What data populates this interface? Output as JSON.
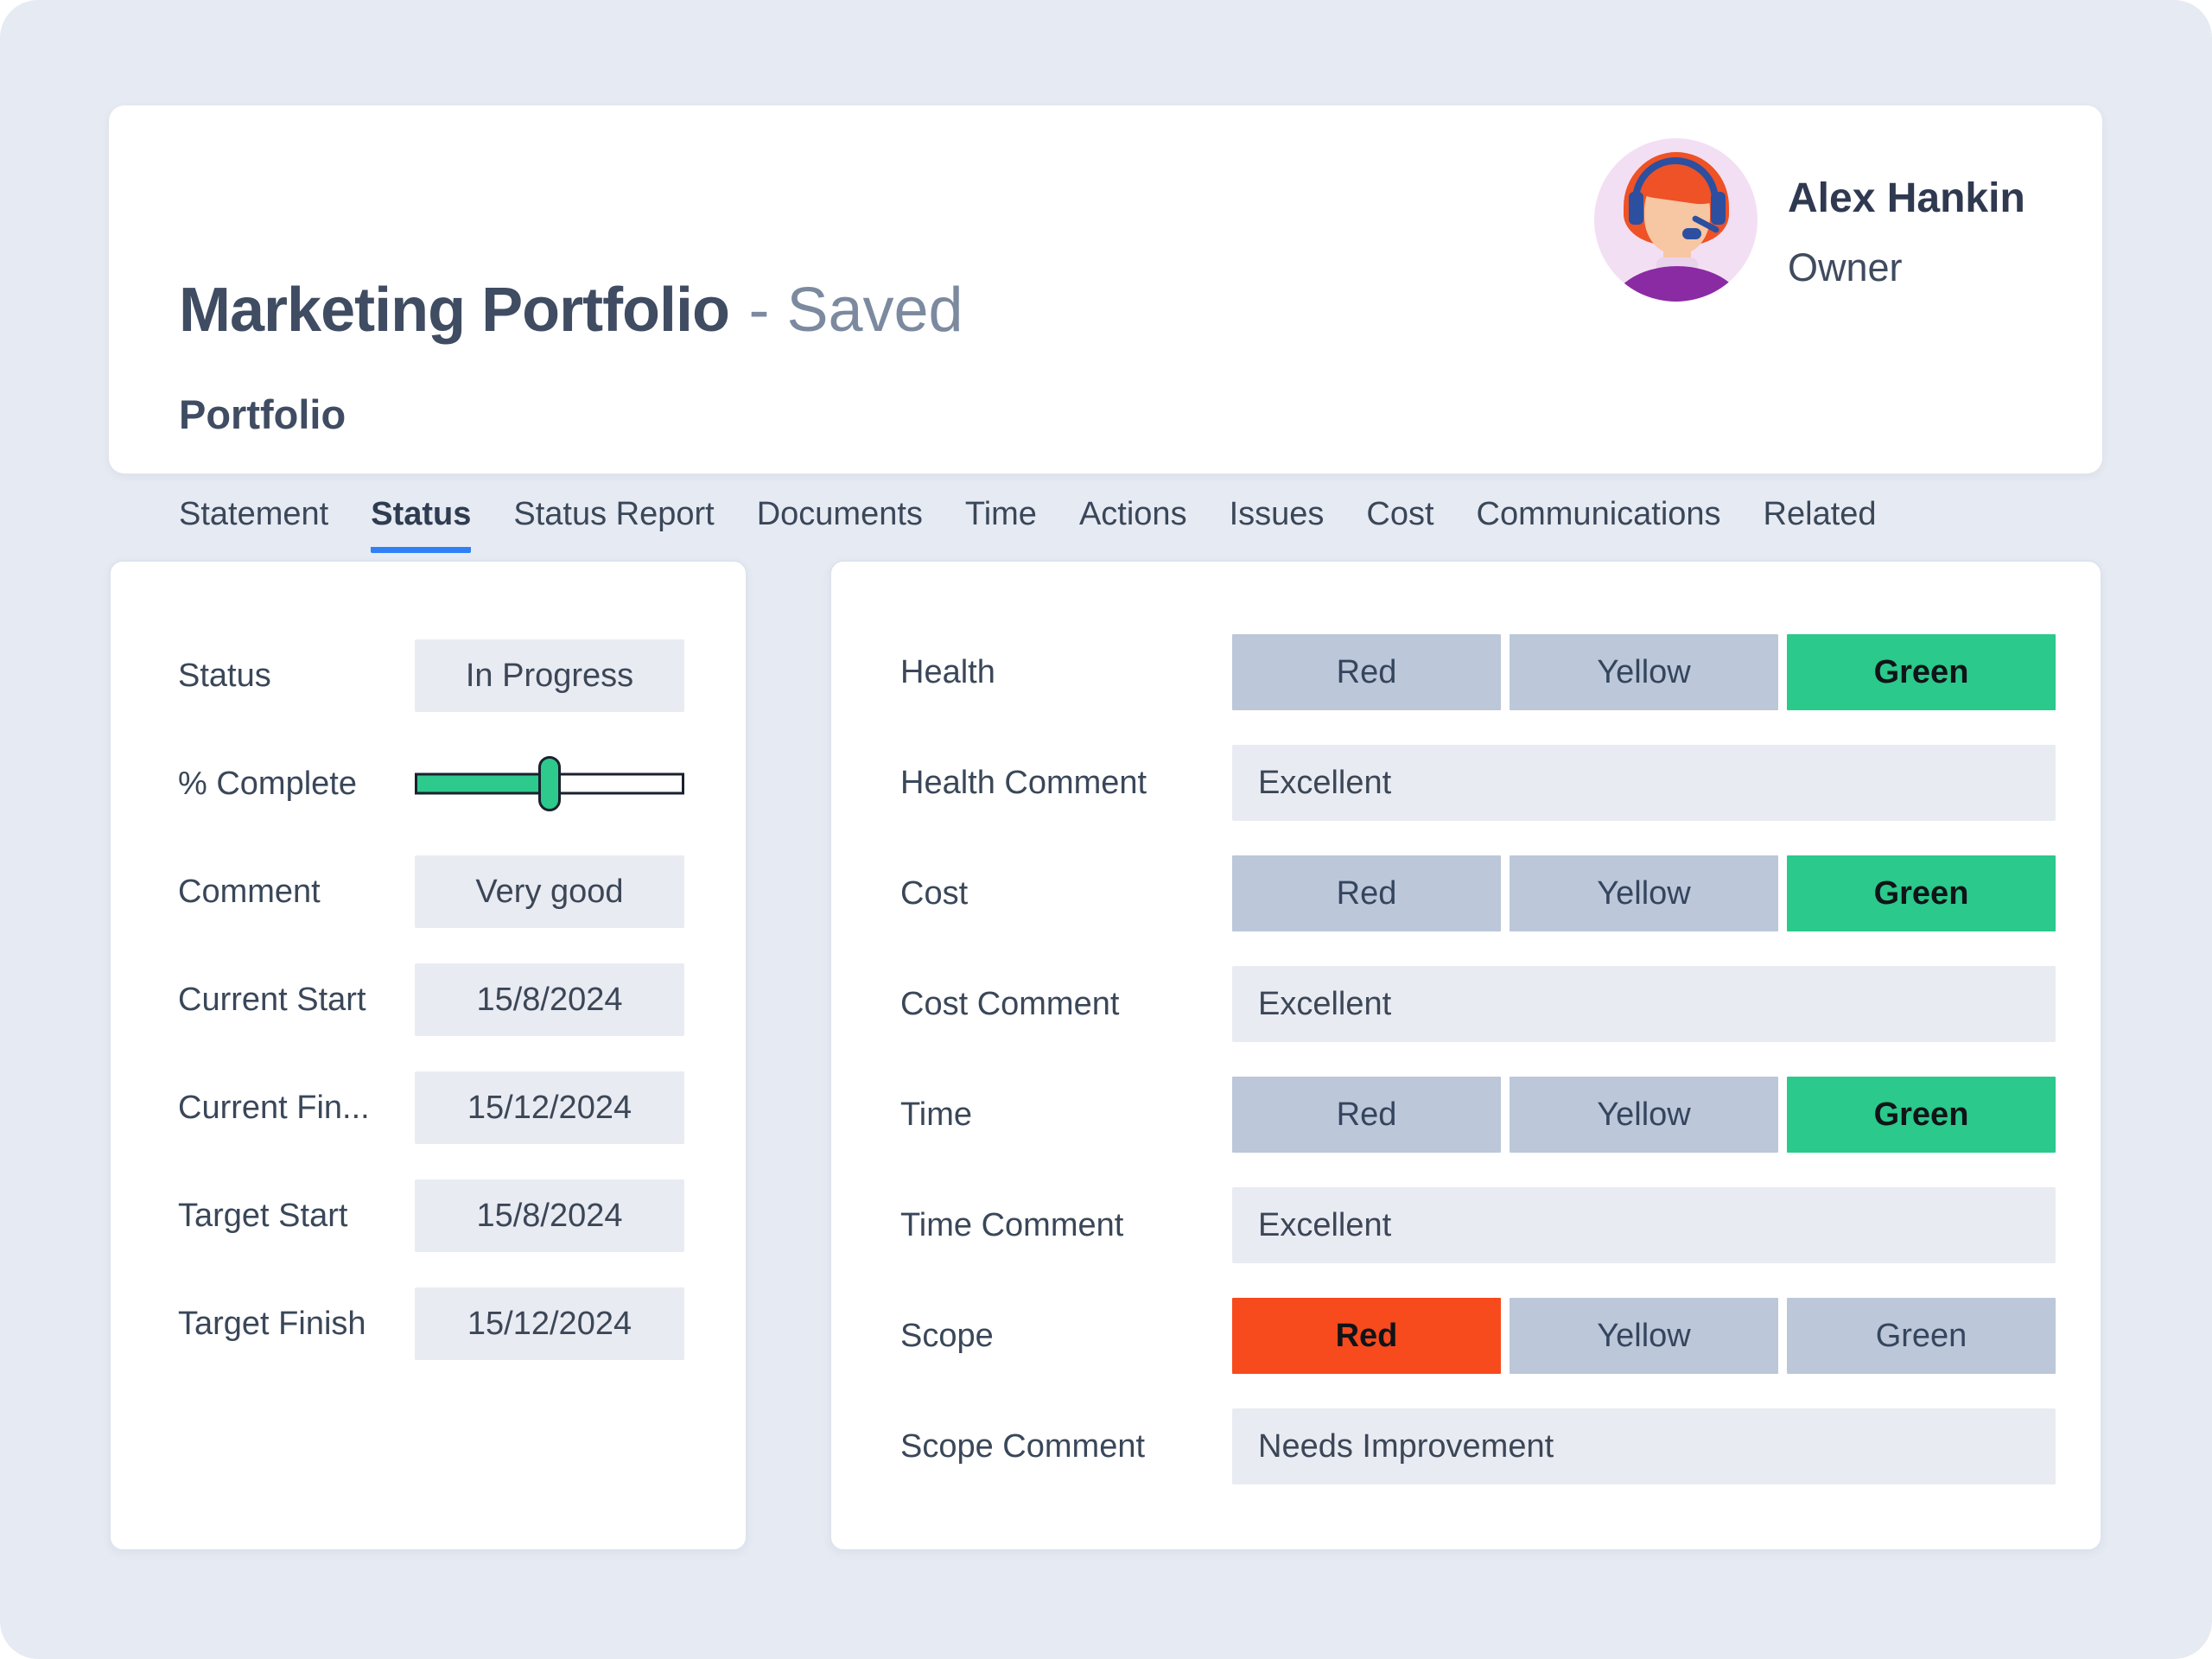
{
  "header": {
    "title": "Marketing Portfolio",
    "saved_suffix": "- Saved",
    "subtitle": "Portfolio",
    "user": {
      "name": "Alex Hankin",
      "role": "Owner"
    },
    "tabs": [
      {
        "label": "Statement",
        "active": false
      },
      {
        "label": "Status",
        "active": true
      },
      {
        "label": "Status Report",
        "active": false
      },
      {
        "label": "Documents",
        "active": false
      },
      {
        "label": "Time",
        "active": false
      },
      {
        "label": "Actions",
        "active": false
      },
      {
        "label": "Issues",
        "active": false
      },
      {
        "label": "Cost",
        "active": false
      },
      {
        "label": "Communications",
        "active": false
      },
      {
        "label": "Related",
        "active": false
      }
    ]
  },
  "status_panel": {
    "status": {
      "label": "Status",
      "value": "In Progress"
    },
    "percent_complete": {
      "label": "% Complete",
      "percent": 50
    },
    "comment": {
      "label": "Comment",
      "value": "Very good"
    },
    "current_start": {
      "label": "Current Start",
      "value": "15/8/2024"
    },
    "current_finish": {
      "label": "Current Fin...",
      "value": "15/12/2024"
    },
    "target_start": {
      "label": "Target Start",
      "value": "15/8/2024"
    },
    "target_finish": {
      "label": "Target Finish",
      "value": "15/12/2024"
    }
  },
  "health_panel": {
    "rag_options": [
      "Red",
      "Yellow",
      "Green"
    ],
    "rows": [
      {
        "type": "rag",
        "label": "Health",
        "selected": "Green"
      },
      {
        "type": "comment",
        "label": "Health Comment",
        "value": "Excellent"
      },
      {
        "type": "rag",
        "label": "Cost",
        "selected": "Green"
      },
      {
        "type": "comment",
        "label": "Cost Comment",
        "value": "Excellent"
      },
      {
        "type": "rag",
        "label": "Time",
        "selected": "Green"
      },
      {
        "type": "comment",
        "label": "Time Comment",
        "value": "Excellent"
      },
      {
        "type": "rag",
        "label": "Scope",
        "selected": "Red"
      },
      {
        "type": "comment",
        "label": "Scope Comment",
        "value": "Needs Improvement"
      }
    ]
  },
  "colors": {
    "page_bg": "#e6eaf2",
    "card_bg": "#ffffff",
    "field_bg": "#e8ebf2",
    "seg_bg": "#bcc7d9",
    "green": "#2bc98b",
    "red": "#f74a1d",
    "slider_green": "#2ec98c",
    "slider_border": "#19212d",
    "tab_underline": "#2f80f7",
    "label_text": "#3a4759",
    "title_text": "#3f4c62",
    "saved_text": "#7c8aa0",
    "avatar_bg": "#f3dff3",
    "avatar_hair": "#ee5226",
    "avatar_skin": "#f7c6a2",
    "avatar_headset": "#2c4f9f",
    "avatar_shirt": "#8b2ba3"
  }
}
